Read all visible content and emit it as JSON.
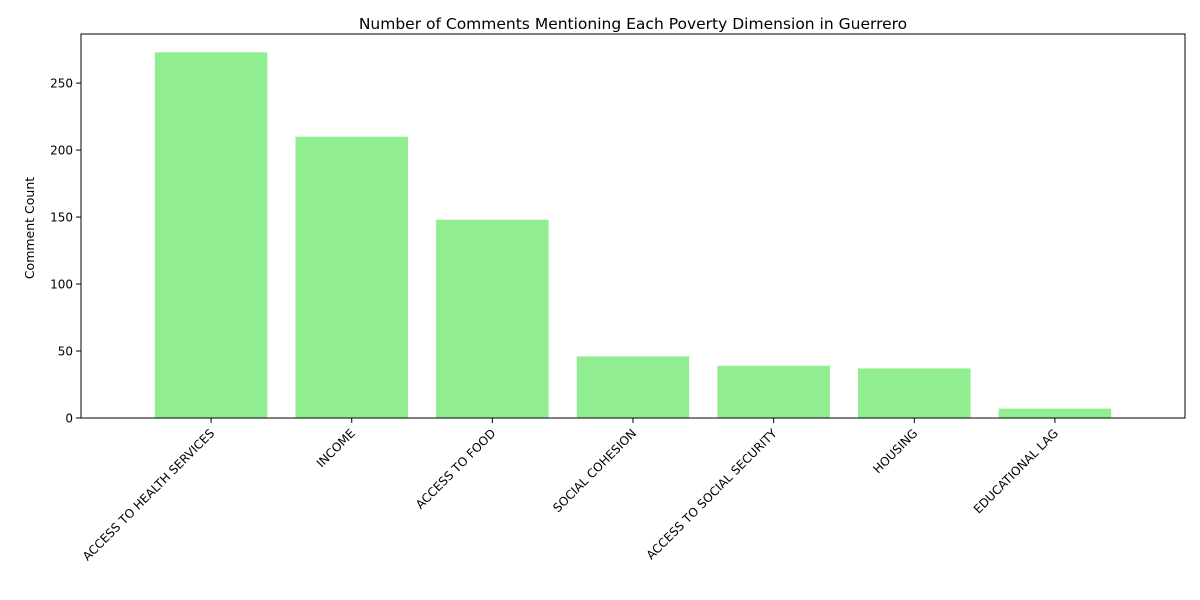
{
  "chart_data": {
    "type": "bar",
    "title": "Number of Comments Mentioning Each Poverty Dimension in Guerrero",
    "xlabel": "",
    "ylabel": "Comment Count",
    "categories": [
      "ACCESS TO HEALTH SERVICES",
      "INCOME",
      "ACCESS TO FOOD",
      "SOCIAL COHESION",
      "ACCESS TO SOCIAL SECURITY",
      "HOUSING",
      "EDUCATIONAL LAG"
    ],
    "values": [
      273,
      210,
      148,
      46,
      39,
      37,
      7
    ],
    "ylim": [
      0,
      286.65
    ],
    "yticks": [
      0,
      50,
      100,
      150,
      200,
      250
    ],
    "bar_color": "#90ee90",
    "grid": false,
    "legend": "none"
  }
}
